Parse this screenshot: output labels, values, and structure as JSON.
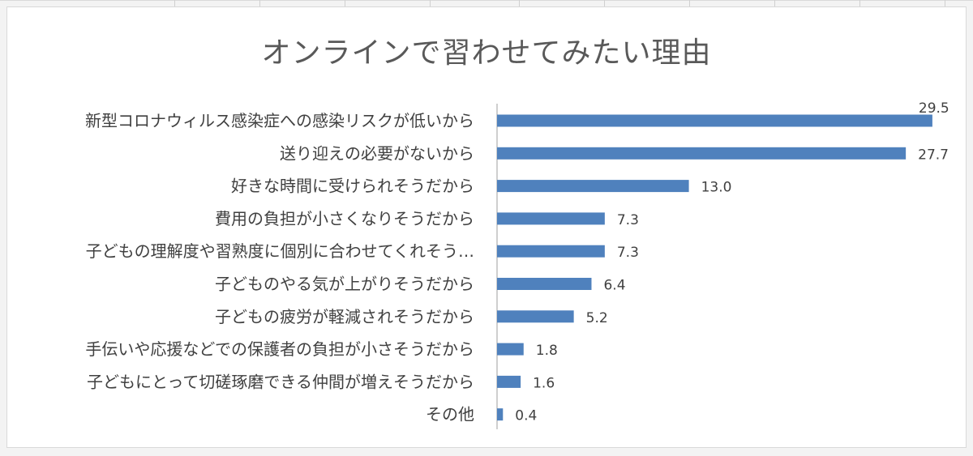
{
  "chart_data": {
    "type": "bar",
    "orientation": "horizontal",
    "title": "オンラインで習わせてみたい理由",
    "categories": [
      "新型コロナウィルス感染症への感染リスクが低いから",
      "送り迎えの必要がないから",
      "好きな時間に受けられそうだから",
      "費用の負担が小さくなりそうだから",
      "子どもの理解度や習熟度に個別に合わせてくれそう…",
      "子どものやる気が上がりそうだから",
      "子どもの疲労が軽減されそうだから",
      "手伝いや応援などでの保護者の負担が小さそうだから",
      "子どもにとって切磋琢磨できる仲間が増えそうだから",
      "その他"
    ],
    "values": [
      29.5,
      27.7,
      13.0,
      7.3,
      7.3,
      6.4,
      5.2,
      1.8,
      1.6,
      0.4
    ],
    "value_labels": [
      "29.5",
      "27.7",
      "13.0",
      "7.3",
      "7.3",
      "6.4",
      "5.2",
      "1.8",
      "1.6",
      "0.4"
    ],
    "xlim": [
      0,
      30
    ],
    "grid": false,
    "legend": "none",
    "bar_color": "#4f81bd"
  }
}
